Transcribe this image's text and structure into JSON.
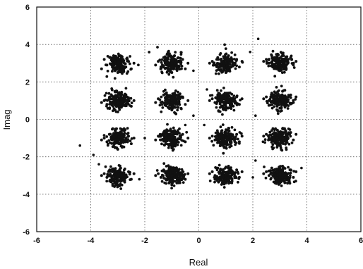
{
  "chart_data": {
    "type": "scatter",
    "title": "",
    "xlabel": "Real",
    "ylabel": "Imag",
    "xlim": [
      -6,
      6
    ],
    "ylim": [
      -6,
      6
    ],
    "xticks": [
      "-6",
      "-4",
      "-2",
      "0",
      "2",
      "4",
      "6"
    ],
    "yticks": [
      "6",
      "4",
      "2",
      "0",
      "-2",
      "-4",
      "-6"
    ],
    "grid": true,
    "legend": "none",
    "point_color": "#111111",
    "clusters": [
      {
        "x": -3,
        "y": 3,
        "points": [
          [
            -3.0,
            3.0
          ],
          [
            -3.4,
            2.9
          ],
          [
            -2.6,
            3.1
          ],
          [
            -3.1,
            2.6
          ],
          [
            -2.9,
            3.4
          ],
          [
            -3.5,
            3.2
          ],
          [
            -2.5,
            2.7
          ],
          [
            -3.2,
            2.8
          ],
          [
            -2.8,
            3.2
          ],
          [
            -3.6,
            2.7
          ],
          [
            -2.4,
            3.0
          ],
          [
            -3.0,
            2.5
          ],
          [
            -3.3,
            3.3
          ],
          [
            -2.7,
            2.8
          ],
          [
            -3.1,
            3.1
          ],
          [
            -2.9,
            2.9
          ]
        ]
      },
      {
        "x": -1,
        "y": 3,
        "points": [
          [
            -1.0,
            3.0
          ],
          [
            -1.4,
            2.8
          ],
          [
            -0.6,
            3.2
          ],
          [
            -1.1,
            2.6
          ],
          [
            -0.9,
            3.4
          ],
          [
            -1.5,
            3.1
          ],
          [
            -0.5,
            2.7
          ],
          [
            -1.2,
            3.2
          ],
          [
            -0.8,
            2.8
          ],
          [
            -1.6,
            2.9
          ],
          [
            -0.4,
            3.0
          ],
          [
            -1.0,
            2.5
          ],
          [
            -1.3,
            3.3
          ],
          [
            -0.7,
            3.1
          ],
          [
            -1.1,
            2.9
          ],
          [
            -0.9,
            3.0
          ]
        ]
      },
      {
        "x": 1,
        "y": 3,
        "points": [
          [
            1.0,
            3.0
          ],
          [
            0.6,
            2.9
          ],
          [
            1.4,
            3.2
          ],
          [
            0.9,
            2.6
          ],
          [
            1.1,
            3.4
          ],
          [
            0.5,
            3.1
          ],
          [
            1.5,
            2.8
          ],
          [
            0.8,
            3.2
          ],
          [
            1.2,
            2.8
          ],
          [
            0.4,
            3.0
          ],
          [
            1.6,
            3.1
          ],
          [
            1.0,
            2.5
          ],
          [
            0.7,
            3.3
          ],
          [
            1.3,
            3.0
          ],
          [
            0.9,
            3.1
          ],
          [
            1.1,
            2.9
          ]
        ]
      },
      {
        "x": 3,
        "y": 3,
        "points": [
          [
            3.0,
            3.1
          ],
          [
            2.6,
            3.0
          ],
          [
            3.4,
            3.3
          ],
          [
            2.9,
            2.7
          ],
          [
            3.1,
            3.5
          ],
          [
            2.5,
            3.2
          ],
          [
            3.5,
            2.9
          ],
          [
            2.8,
            3.3
          ],
          [
            3.2,
            2.9
          ],
          [
            2.4,
            3.1
          ],
          [
            3.6,
            3.1
          ],
          [
            3.0,
            2.6
          ],
          [
            2.7,
            3.4
          ],
          [
            3.3,
            3.0
          ],
          [
            3.1,
            3.2
          ],
          [
            2.9,
            3.0
          ]
        ]
      },
      {
        "x": -3,
        "y": 1,
        "points": [
          [
            -3.0,
            0.9
          ],
          [
            -3.4,
            0.8
          ],
          [
            -2.6,
            1.1
          ],
          [
            -3.1,
            0.5
          ],
          [
            -2.9,
            1.3
          ],
          [
            -3.5,
            1.0
          ],
          [
            -2.5,
            0.7
          ],
          [
            -3.2,
            1.1
          ],
          [
            -2.8,
            0.8
          ],
          [
            -3.6,
            0.9
          ],
          [
            -2.4,
            1.0
          ],
          [
            -3.0,
            0.4
          ],
          [
            -3.3,
            1.2
          ],
          [
            -2.7,
            1.0
          ],
          [
            -3.1,
            0.9
          ],
          [
            -2.9,
            0.7
          ]
        ]
      },
      {
        "x": -1,
        "y": 1,
        "points": [
          [
            -1.0,
            1.0
          ],
          [
            -1.4,
            0.9
          ],
          [
            -0.6,
            1.2
          ],
          [
            -1.1,
            0.6
          ],
          [
            -0.9,
            1.4
          ],
          [
            -1.5,
            1.1
          ],
          [
            -0.5,
            0.8
          ],
          [
            -1.2,
            1.2
          ],
          [
            -0.8,
            0.8
          ],
          [
            -1.6,
            0.9
          ],
          [
            -0.4,
            1.0
          ],
          [
            -1.0,
            0.5
          ],
          [
            -1.3,
            1.3
          ],
          [
            -0.7,
            1.1
          ],
          [
            -1.1,
            0.9
          ],
          [
            -0.9,
            1.0
          ]
        ]
      },
      {
        "x": 1,
        "y": 1,
        "points": [
          [
            1.0,
            1.0
          ],
          [
            0.6,
            0.9
          ],
          [
            1.4,
            1.2
          ],
          [
            0.9,
            0.6
          ],
          [
            1.1,
            1.4
          ],
          [
            0.5,
            1.1
          ],
          [
            1.5,
            0.8
          ],
          [
            0.8,
            1.2
          ],
          [
            1.2,
            0.8
          ],
          [
            0.4,
            1.0
          ],
          [
            1.6,
            1.1
          ],
          [
            1.0,
            0.5
          ],
          [
            0.7,
            1.3
          ],
          [
            1.3,
            1.0
          ],
          [
            0.9,
            1.1
          ],
          [
            1.1,
            0.9
          ]
        ]
      },
      {
        "x": 3,
        "y": 1,
        "points": [
          [
            3.0,
            1.1
          ],
          [
            2.6,
            1.0
          ],
          [
            3.4,
            1.3
          ],
          [
            2.9,
            0.7
          ],
          [
            3.1,
            1.5
          ],
          [
            2.5,
            1.2
          ],
          [
            3.5,
            0.9
          ],
          [
            2.8,
            1.3
          ],
          [
            3.2,
            0.9
          ],
          [
            2.4,
            1.1
          ],
          [
            3.6,
            1.2
          ],
          [
            3.0,
            0.6
          ],
          [
            2.7,
            1.4
          ],
          [
            3.3,
            1.0
          ],
          [
            3.1,
            1.2
          ],
          [
            2.9,
            1.0
          ]
        ]
      },
      {
        "x": -3,
        "y": -1,
        "points": [
          [
            -3.0,
            -1.1
          ],
          [
            -3.4,
            -1.2
          ],
          [
            -2.6,
            -0.9
          ],
          [
            -3.1,
            -1.5
          ],
          [
            -2.9,
            -0.7
          ],
          [
            -3.5,
            -1.0
          ],
          [
            -2.5,
            -1.3
          ],
          [
            -3.2,
            -0.9
          ],
          [
            -2.8,
            -1.2
          ],
          [
            -3.6,
            -1.1
          ],
          [
            -2.4,
            -1.0
          ],
          [
            -3.0,
            -1.6
          ],
          [
            -3.3,
            -0.8
          ],
          [
            -2.7,
            -1.0
          ],
          [
            -3.1,
            -1.1
          ],
          [
            -2.9,
            -1.3
          ]
        ]
      },
      {
        "x": -1,
        "y": -1,
        "points": [
          [
            -1.0,
            -1.0
          ],
          [
            -1.4,
            -1.1
          ],
          [
            -0.6,
            -0.8
          ],
          [
            -1.1,
            -1.4
          ],
          [
            -0.9,
            -0.6
          ],
          [
            -1.5,
            -0.9
          ],
          [
            -0.5,
            -1.2
          ],
          [
            -1.2,
            -0.8
          ],
          [
            -0.8,
            -1.2
          ],
          [
            -1.6,
            -1.1
          ],
          [
            -0.4,
            -1.0
          ],
          [
            -1.0,
            -1.5
          ],
          [
            -1.3,
            -0.7
          ],
          [
            -0.7,
            -0.9
          ],
          [
            -1.1,
            -1.1
          ],
          [
            -0.9,
            -1.0
          ]
        ]
      },
      {
        "x": 1,
        "y": -1,
        "points": [
          [
            1.0,
            -1.0
          ],
          [
            0.6,
            -1.1
          ],
          [
            1.4,
            -0.8
          ],
          [
            0.9,
            -1.4
          ],
          [
            1.1,
            -0.6
          ],
          [
            0.5,
            -0.9
          ],
          [
            1.5,
            -1.2
          ],
          [
            0.8,
            -0.8
          ],
          [
            1.2,
            -1.2
          ],
          [
            0.4,
            -1.0
          ],
          [
            1.6,
            -0.9
          ],
          [
            1.0,
            -1.5
          ],
          [
            0.7,
            -0.7
          ],
          [
            1.3,
            -1.0
          ],
          [
            0.9,
            -0.9
          ],
          [
            1.1,
            -1.1
          ]
        ]
      },
      {
        "x": 3,
        "y": -1,
        "points": [
          [
            3.0,
            -0.9
          ],
          [
            2.6,
            -1.0
          ],
          [
            3.4,
            -0.7
          ],
          [
            2.9,
            -1.3
          ],
          [
            3.1,
            -0.5
          ],
          [
            2.5,
            -0.8
          ],
          [
            3.5,
            -1.1
          ],
          [
            2.8,
            -0.7
          ],
          [
            3.2,
            -1.1
          ],
          [
            2.4,
            -0.9
          ],
          [
            3.6,
            -0.8
          ],
          [
            3.0,
            -1.4
          ],
          [
            2.7,
            -0.6
          ],
          [
            3.3,
            -1.0
          ],
          [
            3.1,
            -0.8
          ],
          [
            2.9,
            -1.0
          ]
        ]
      },
      {
        "x": -3,
        "y": -3,
        "points": [
          [
            -3.0,
            -3.0
          ],
          [
            -3.4,
            -3.1
          ],
          [
            -2.6,
            -2.8
          ],
          [
            -3.1,
            -3.4
          ],
          [
            -2.9,
            -2.6
          ],
          [
            -3.5,
            -2.9
          ],
          [
            -2.5,
            -3.2
          ],
          [
            -3.2,
            -2.8
          ],
          [
            -2.8,
            -3.2
          ],
          [
            -3.6,
            -3.0
          ],
          [
            -2.4,
            -2.9
          ],
          [
            -3.0,
            -3.5
          ],
          [
            -3.3,
            -2.7
          ],
          [
            -2.7,
            -3.0
          ],
          [
            -3.1,
            -3.1
          ],
          [
            -2.9,
            -2.9
          ]
        ]
      },
      {
        "x": -1,
        "y": -3,
        "points": [
          [
            -1.0,
            -3.0
          ],
          [
            -1.4,
            -3.1
          ],
          [
            -0.6,
            -2.8
          ],
          [
            -1.1,
            -3.4
          ],
          [
            -0.9,
            -2.6
          ],
          [
            -1.5,
            -2.9
          ],
          [
            -0.5,
            -3.2
          ],
          [
            -1.2,
            -2.8
          ],
          [
            -0.8,
            -3.2
          ],
          [
            -1.6,
            -3.0
          ],
          [
            -0.4,
            -2.9
          ],
          [
            -1.0,
            -3.5
          ],
          [
            -1.3,
            -2.7
          ],
          [
            -0.7,
            -3.0
          ],
          [
            -1.1,
            -3.1
          ],
          [
            -0.9,
            -2.9
          ]
        ]
      },
      {
        "x": 1,
        "y": -3,
        "points": [
          [
            1.0,
            -2.9
          ],
          [
            0.6,
            -3.0
          ],
          [
            1.4,
            -2.7
          ],
          [
            0.9,
            -3.3
          ],
          [
            1.1,
            -2.5
          ],
          [
            0.5,
            -2.8
          ],
          [
            1.5,
            -3.1
          ],
          [
            0.8,
            -2.7
          ],
          [
            1.2,
            -3.1
          ],
          [
            0.4,
            -2.9
          ],
          [
            1.6,
            -2.8
          ],
          [
            1.0,
            -3.4
          ],
          [
            0.7,
            -2.6
          ],
          [
            1.3,
            -2.9
          ],
          [
            0.9,
            -3.0
          ],
          [
            1.1,
            -2.8
          ]
        ]
      },
      {
        "x": 3,
        "y": -3,
        "points": [
          [
            3.0,
            -2.9
          ],
          [
            2.6,
            -3.0
          ],
          [
            3.4,
            -2.7
          ],
          [
            2.9,
            -3.3
          ],
          [
            3.1,
            -2.5
          ],
          [
            2.5,
            -2.8
          ],
          [
            3.5,
            -3.1
          ],
          [
            2.8,
            -2.7
          ],
          [
            3.2,
            -3.1
          ],
          [
            2.4,
            -2.9
          ],
          [
            3.6,
            -2.8
          ],
          [
            3.0,
            -3.4
          ],
          [
            2.7,
            -2.6
          ],
          [
            3.3,
            -2.9
          ],
          [
            3.1,
            -3.0
          ],
          [
            2.9,
            -2.8
          ]
        ]
      }
    ],
    "outliers": [
      [
        -4.4,
        -1.4
      ],
      [
        -3.9,
        -1.9
      ],
      [
        -3.7,
        -2.4
      ],
      [
        -2.0,
        -1.0
      ],
      [
        -0.2,
        2.6
      ],
      [
        0.2,
        -0.3
      ],
      [
        0.3,
        1.6
      ],
      [
        -0.5,
        -0.3
      ],
      [
        -0.2,
        0.2
      ],
      [
        2.1,
        0.2
      ],
      [
        2.1,
        -2.2
      ],
      [
        2.2,
        4.3
      ],
      [
        1.9,
        3.6
      ],
      [
        2.0,
        -3.1
      ],
      [
        -2.2,
        -3.2
      ],
      [
        3.8,
        -2.6
      ]
    ]
  }
}
